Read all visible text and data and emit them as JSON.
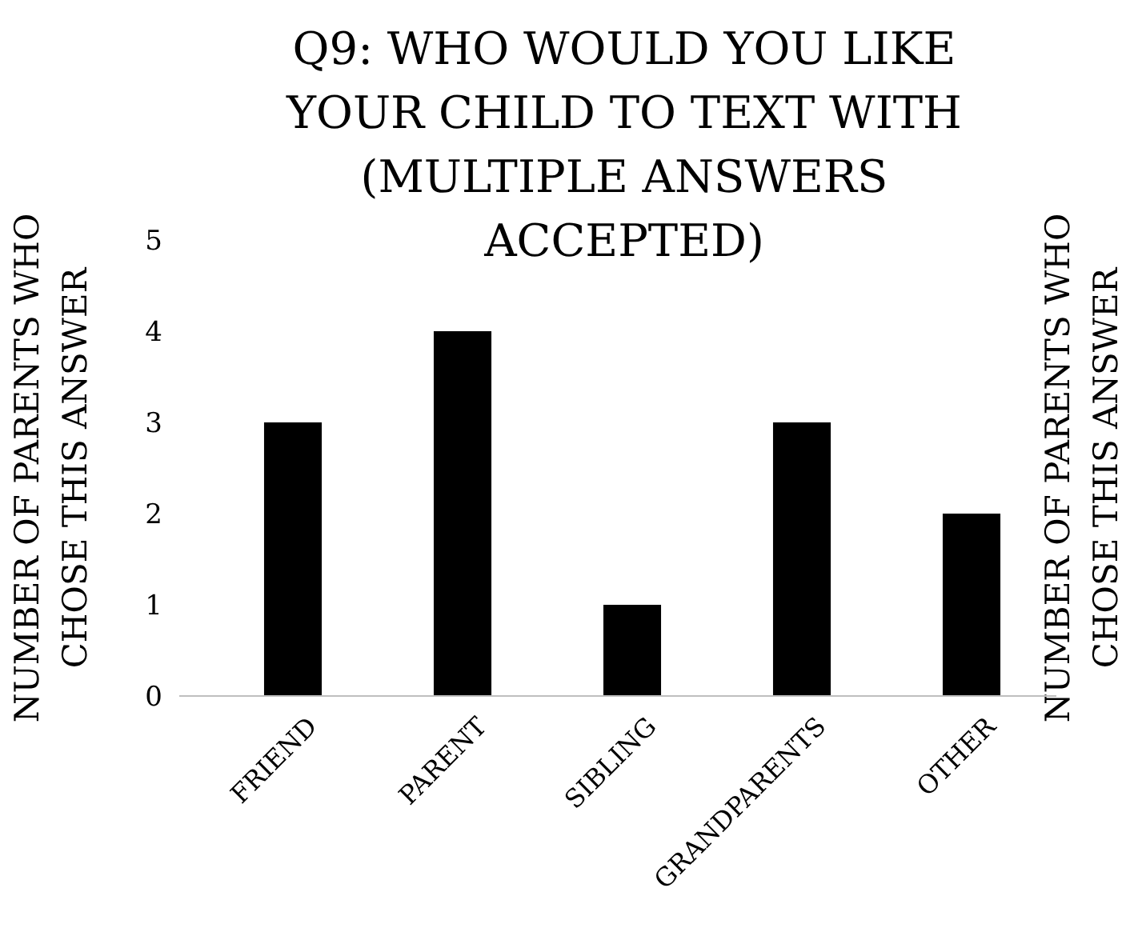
{
  "chart_data": {
    "type": "bar",
    "title": "Q9: WHO WOULD YOU LIKE YOUR CHILD TO TEXT WITH (MULTIPLE ANSWERS ACCEPTED)",
    "ylabel": "NUMBER OF PARENTS WHO CHOSE THIS ANSWER",
    "y2label": "NUMBER OF PARENTS WHO CHOSE THIS ANSWER",
    "categories": [
      "FRIEND",
      "PARENT",
      "SIBLING",
      "GRANDPARENTS",
      "OTHER"
    ],
    "values": [
      3,
      4,
      1,
      3,
      2
    ],
    "color": "#000000",
    "ylim": [
      0,
      5
    ],
    "yticks": [
      0,
      1,
      2,
      3,
      4,
      5
    ],
    "grid": false
  }
}
